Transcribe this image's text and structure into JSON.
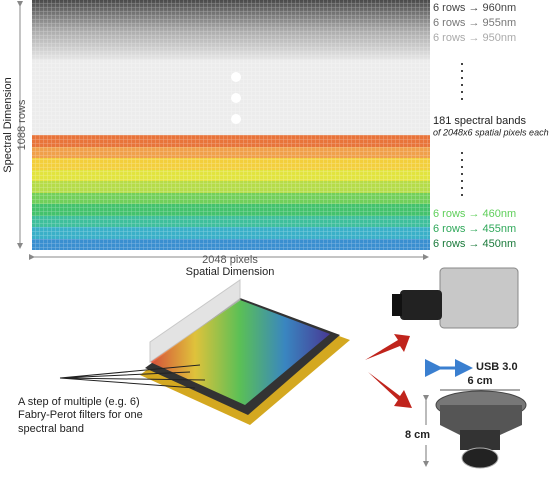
{
  "sensor": {
    "top_labels": [
      "6 rows → 960nm",
      "6 rows → 955nm",
      "6 rows → 950nm"
    ],
    "middle_label": "181 spectral bands",
    "middle_sublabel": "of 2048x6 spatial pixels each",
    "bottom_labels": [
      "6 rows → 460nm",
      "6 rows → 455nm",
      "6 rows → 450nm"
    ],
    "y_axis": {
      "title": "Spectral Dimension",
      "subtitle": "1088 rows"
    },
    "x_axis": {
      "subtitle": "2048 pixels",
      "title": "Spatial Dimension"
    }
  },
  "filter_note": [
    "A step of multiple (e.g. 6)",
    "Fabry-Perot filters for one",
    "spectral band"
  ],
  "camera": {
    "interface": "USB 3.0",
    "width": "6 cm",
    "height": "8 cm"
  }
}
